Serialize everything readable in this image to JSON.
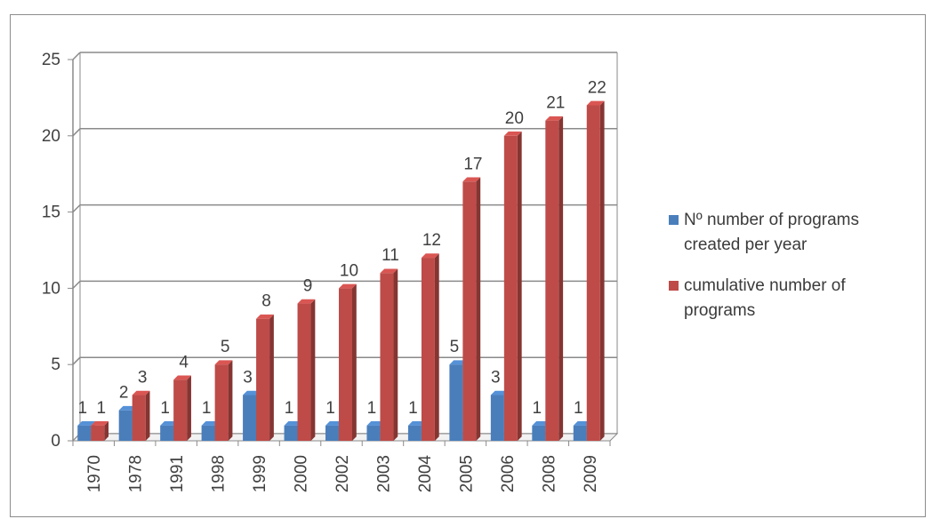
{
  "chart_data": {
    "type": "bar",
    "style": "3d-clustered-column",
    "categories": [
      "1970",
      "1978",
      "1991",
      "1998",
      "1999",
      "2000",
      "2002",
      "2003",
      "2004",
      "2005",
      "2006",
      "2008",
      "2009"
    ],
    "series": [
      {
        "name": "Nº number of programs created per year",
        "color": "#4a7ebb",
        "values": [
          1,
          2,
          1,
          1,
          3,
          1,
          1,
          1,
          1,
          5,
          3,
          1,
          1
        ]
      },
      {
        "name": "cumulative number of programs",
        "color": "#be4b48",
        "values": [
          1,
          3,
          4,
          5,
          8,
          9,
          10,
          11,
          12,
          17,
          20,
          21,
          22
        ]
      }
    ],
    "ylim": [
      0,
      25
    ],
    "yticks": [
      0,
      5,
      10,
      15,
      20,
      25
    ],
    "grid": true,
    "data_labels": true,
    "legend_position": "right"
  },
  "legend": {
    "items": [
      {
        "label_lines": [
          "Nº number of programs",
          "created per year"
        ],
        "color": "#4a7ebb"
      },
      {
        "label_lines": [
          "cumulative number of",
          "programs"
        ],
        "color": "#be4b48"
      }
    ]
  }
}
